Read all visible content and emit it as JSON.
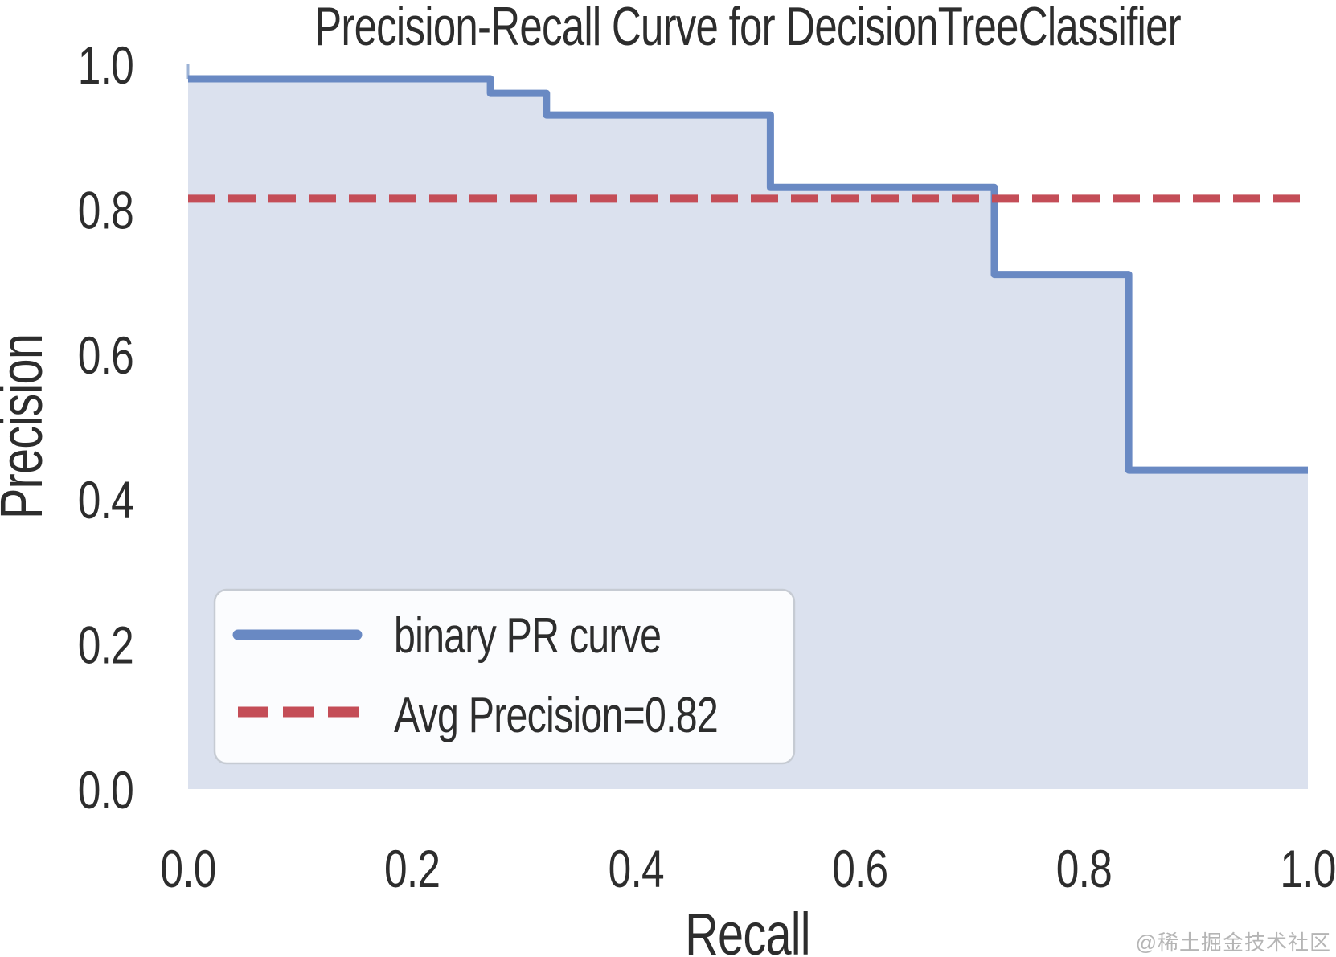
{
  "figure": {
    "title": "Precision-Recall Curve for DecisionTreeClassifier",
    "watermark": "@稀土掘金技术社区"
  },
  "chart_data": {
    "type": "line",
    "subtype": "step-area-pr-curve",
    "title": "Precision-Recall Curve for DecisionTreeClassifier",
    "xlabel": "Recall",
    "ylabel": "Precision",
    "xlim": [
      0.0,
      1.0
    ],
    "ylim": [
      0.0,
      1.0
    ],
    "xticks": [
      0.0,
      0.2,
      0.4,
      0.6,
      0.8,
      1.0
    ],
    "yticks": [
      0.0,
      0.2,
      0.4,
      0.6,
      0.8,
      1.0
    ],
    "xtick_labels": [
      "0.0",
      "0.2",
      "0.4",
      "0.6",
      "0.8",
      "1.0"
    ],
    "ytick_labels": [
      "0.0",
      "0.2",
      "0.4",
      "0.6",
      "0.8",
      "1.0"
    ],
    "grid": false,
    "spines": false,
    "colors": {
      "curve": "#6989c3",
      "curve_start_edge": "#9db3d6",
      "area_fill": "#dbe1ee",
      "avg_precision_line": "#c44d57",
      "text": "#2d2d2d",
      "legend_background": "#fbfcfe",
      "legend_border": "#c6cbd3",
      "watermark": "#b5b5b5"
    },
    "series": [
      {
        "name": "binary PR curve",
        "type": "step",
        "color": "#6989c3",
        "fill_color": "#dbe1ee",
        "points": [
          [
            0.0,
            1.0
          ],
          [
            0.0,
            0.98
          ],
          [
            0.27,
            0.98
          ],
          [
            0.27,
            0.96
          ],
          [
            0.32,
            0.96
          ],
          [
            0.32,
            0.93
          ],
          [
            0.52,
            0.93
          ],
          [
            0.52,
            0.83
          ],
          [
            0.72,
            0.83
          ],
          [
            0.72,
            0.71
          ],
          [
            0.84,
            0.71
          ],
          [
            0.84,
            0.44
          ],
          [
            1.0,
            0.44
          ]
        ]
      },
      {
        "name": "Avg Precision=0.82",
        "type": "hline",
        "value": 0.82,
        "color": "#c44d57",
        "style": "dashed"
      }
    ],
    "legend": {
      "position": "lower left",
      "entries": [
        {
          "label": "binary PR curve",
          "style": "solid",
          "color": "#6989c3"
        },
        {
          "label": "Avg Precision=0.82",
          "style": "dashed",
          "color": "#c44d57"
        }
      ]
    }
  }
}
